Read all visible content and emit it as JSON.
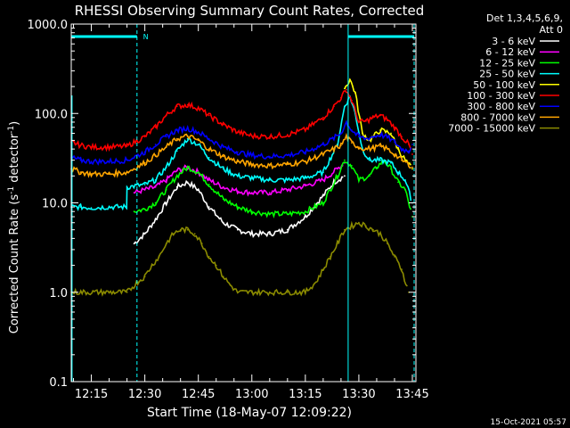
{
  "chart_data": {
    "type": "line",
    "title": "RHESSI Observing Summary Count Rates, Corrected",
    "xlabel": "Start Time (18-May-07 12:09:22)",
    "ylabel_main": "Corrected Count Rate (s",
    "ylabel_sup1": "-1",
    "ylabel_mid": " detector",
    "ylabel_sup2": "-1",
    "ylabel_end": ")",
    "yscale": "log",
    "ylim": [
      0.1,
      1000
    ],
    "xlim": [
      9.37,
      106
    ],
    "xticks": [
      {
        "v": 15,
        "label": "12:15"
      },
      {
        "v": 30,
        "label": "12:30"
      },
      {
        "v": 45,
        "label": "12:45"
      },
      {
        "v": 60,
        "label": "13:00"
      },
      {
        "v": 75,
        "label": "13:15"
      },
      {
        "v": 90,
        "label": "13:30"
      },
      {
        "v": 105,
        "label": "13:45"
      }
    ],
    "yticks": [
      {
        "v": 1000,
        "label": "1000.0"
      },
      {
        "v": 100,
        "label": "100.0"
      },
      {
        "v": 10,
        "label": "10.0"
      },
      {
        "v": 1,
        "label": "1.0"
      },
      {
        "v": 0.1,
        "label": "0.1"
      }
    ],
    "legend_header": [
      "Det 1,3,4,5,6,9,",
      "Att 0"
    ],
    "series": [
      {
        "name": "3 - 6 keV",
        "color": "#ffffff",
        "points": [
          [
            9.4,
            ""
          ],
          [
            10,
            ""
          ]
        ],
        "x": [
          9.4,
          27,
          30,
          33,
          36,
          39,
          42,
          45,
          48,
          52,
          56,
          60,
          65,
          70,
          75,
          80,
          83,
          86
        ],
        "y": [
          null,
          3.5,
          4.5,
          6.5,
          10,
          15,
          17,
          14,
          9,
          6,
          5,
          4.5,
          4.5,
          5,
          7,
          12,
          17,
          20
        ]
      },
      {
        "name": "6 - 12 keV",
        "color": "#ff00ff",
        "x": [
          27,
          30,
          33,
          36,
          39,
          42,
          45,
          48,
          52,
          56,
          60,
          65,
          70,
          75,
          80,
          84,
          86
        ],
        "y": [
          13,
          14,
          15,
          18,
          23,
          25,
          22,
          18,
          15,
          13.5,
          13,
          13,
          14,
          15.5,
          18,
          24,
          28
        ]
      },
      {
        "name": "12 - 25 keV",
        "color": "#00ff00",
        "x": [
          27,
          30,
          33,
          36,
          39,
          42,
          45,
          48,
          52,
          56,
          60,
          65,
          70,
          75,
          80,
          84,
          86,
          88,
          90,
          93,
          95,
          97,
          99,
          101,
          103,
          105
        ],
        "y": [
          8,
          8.5,
          10,
          14,
          20,
          25,
          22,
          16,
          11,
          9,
          8,
          7.5,
          7.5,
          8,
          10,
          20,
          30,
          26,
          18,
          20,
          25,
          30,
          24,
          17,
          14,
          7
        ]
      },
      {
        "name": "25 - 50 keV",
        "color": "#00ffff",
        "x": [
          9.4,
          12,
          15,
          20,
          24.9,
          25,
          30,
          33,
          36,
          39,
          42,
          45,
          48,
          52,
          56,
          60,
          65,
          70,
          75,
          80,
          84,
          86,
          87.5,
          89,
          91,
          93,
          96,
          99,
          101,
          103,
          105
        ],
        "y": [
          9,
          9,
          8.8,
          9,
          9,
          15,
          16,
          18,
          25,
          38,
          52,
          45,
          32,
          24,
          20,
          19,
          18,
          18,
          19,
          22,
          45,
          120,
          155,
          100,
          40,
          30,
          30,
          28,
          22,
          18,
          10
        ]
      },
      {
        "name": "50 - 100 keV",
        "color": "#ffff00",
        "x": [
          86,
          87.5,
          89,
          91,
          93,
          96,
          99,
          101,
          103,
          105
        ],
        "y": [
          190,
          240,
          170,
          60,
          50,
          65,
          60,
          40,
          30,
          24
        ]
      },
      {
        "name": "100 - 300 keV",
        "color": "#ff0000",
        "x": [
          9.4,
          12,
          15,
          20,
          25,
          30,
          33,
          36,
          39,
          42,
          45,
          48,
          52,
          56,
          60,
          65,
          70,
          75,
          80,
          83,
          85,
          86.5,
          88,
          90,
          92,
          94,
          96,
          98,
          100,
          102,
          104,
          105
        ],
        "y": [
          48,
          44,
          42,
          42,
          43,
          55,
          70,
          95,
          120,
          125,
          115,
          95,
          75,
          62,
          56,
          55,
          58,
          66,
          90,
          120,
          150,
          185,
          140,
          80,
          82,
          90,
          95,
          85,
          70,
          55,
          45,
          35
        ]
      },
      {
        "name": "300 - 800 keV",
        "color": "#0000ff",
        "x": [
          9.4,
          12,
          15,
          20,
          25,
          30,
          33,
          36,
          39,
          42,
          45,
          48,
          52,
          56,
          60,
          65,
          70,
          75,
          80,
          83,
          85,
          86.5,
          88,
          90,
          92,
          94,
          96,
          98,
          100,
          102,
          104,
          105
        ],
        "y": [
          32,
          30,
          29,
          29,
          30,
          37,
          45,
          55,
          65,
          68,
          62,
          52,
          42,
          37,
          34,
          33,
          34,
          37,
          45,
          53,
          60,
          80,
          65,
          55,
          52,
          55,
          58,
          54,
          48,
          40,
          38,
          45
        ]
      },
      {
        "name": "800 - 7000 keV",
        "color": "#ffa500",
        "x": [
          9.4,
          12,
          15,
          20,
          25,
          30,
          33,
          36,
          39,
          42,
          45,
          48,
          52,
          56,
          60,
          65,
          70,
          75,
          80,
          83,
          85,
          86.5,
          88,
          90,
          92,
          94,
          96,
          98,
          100,
          102,
          104,
          105
        ],
        "y": [
          24,
          22,
          21,
          21,
          22,
          28,
          34,
          42,
          52,
          56,
          50,
          40,
          33,
          29,
          27,
          26,
          27,
          29,
          35,
          40,
          44,
          55,
          47,
          42,
          40,
          41,
          43,
          40,
          35,
          30,
          27,
          25
        ]
      },
      {
        "name": "7000 - 15000 keV",
        "color": "#8b8b00",
        "x": [
          9.4,
          20,
          25,
          28,
          30,
          32,
          34,
          36,
          38,
          40,
          42,
          44,
          46,
          48,
          50,
          52,
          54,
          56,
          60,
          65,
          70,
          75,
          78,
          80,
          82,
          84,
          86,
          88,
          90,
          92,
          94,
          96,
          98,
          100,
          102,
          104
        ],
        "y": [
          1,
          1,
          1,
          1.3,
          1.5,
          2,
          2.5,
          3.5,
          4.5,
          5,
          5,
          4.5,
          3.5,
          2.5,
          2,
          1.5,
          1.2,
          1,
          1,
          1,
          1,
          1,
          1.3,
          1.8,
          2.5,
          3.5,
          5,
          5.5,
          6,
          5.5,
          5,
          4.5,
          3.5,
          2.5,
          1.8,
          1
        ]
      }
    ],
    "flag_label": "N",
    "footer_date": "15-Oct-2021 05:57"
  }
}
